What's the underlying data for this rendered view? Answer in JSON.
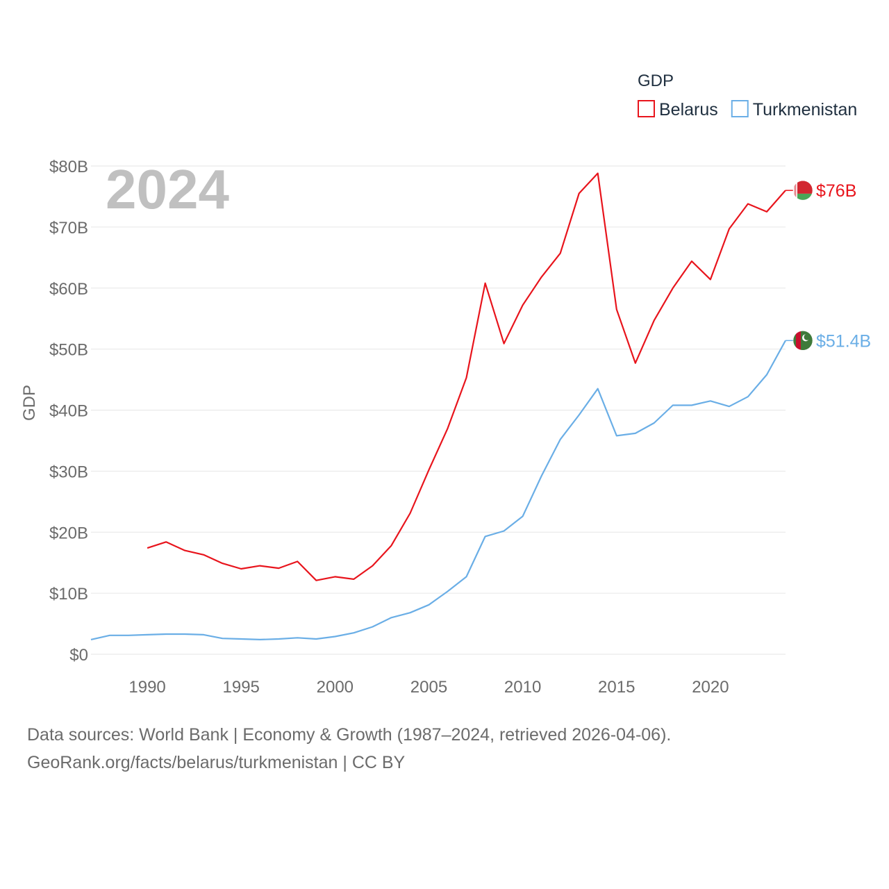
{
  "chart_data": {
    "type": "line",
    "title": "GDP",
    "ylabel": "GDP",
    "xlabel": "",
    "ylim": [
      0,
      80
    ],
    "xlim": [
      1987,
      2024
    ],
    "y_ticks": [
      0,
      10,
      20,
      30,
      40,
      50,
      60,
      70,
      80
    ],
    "y_tick_labels": [
      "$0",
      "$10B",
      "$20B",
      "$30B",
      "$40B",
      "$50B",
      "$60B",
      "$70B",
      "$80B"
    ],
    "x_ticks": [
      1990,
      1995,
      2000,
      2005,
      2010,
      2015,
      2020
    ],
    "x_tick_labels": [
      "1990",
      "1995",
      "2000",
      "2005",
      "2010",
      "2015",
      "2020"
    ],
    "grid": true,
    "legend": {
      "title": "GDP",
      "position": "top-right"
    },
    "current_year": "2024",
    "series": [
      {
        "name": "Belarus",
        "color": "#e8141c",
        "flag": "belarus-flag-icon",
        "end_label": "$76B",
        "x": [
          1990,
          1991,
          1992,
          1993,
          1994,
          1995,
          1996,
          1997,
          1998,
          1999,
          2000,
          2001,
          2002,
          2003,
          2004,
          2005,
          2006,
          2007,
          2008,
          2009,
          2010,
          2011,
          2012,
          2013,
          2014,
          2015,
          2016,
          2017,
          2018,
          2019,
          2020,
          2021,
          2022,
          2023,
          2024
        ],
        "values": [
          17.4,
          18.4,
          17.0,
          16.3,
          14.9,
          14.0,
          14.5,
          14.1,
          15.2,
          12.1,
          12.7,
          12.3,
          14.5,
          17.8,
          23.1,
          30.2,
          37.0,
          45.3,
          60.8,
          50.9,
          57.2,
          61.8,
          65.7,
          75.5,
          78.8,
          56.5,
          47.7,
          54.7,
          60.0,
          64.4,
          61.4,
          69.7,
          73.8,
          72.5,
          76.0
        ]
      },
      {
        "name": "Turkmenistan",
        "color": "#6aaee6",
        "flag": "turkmenistan-flag-icon",
        "end_label": "$51.4B",
        "x": [
          1987,
          1988,
          1989,
          1990,
          1991,
          1992,
          1993,
          1994,
          1995,
          1996,
          1997,
          1998,
          1999,
          2000,
          2001,
          2002,
          2003,
          2004,
          2005,
          2006,
          2007,
          2008,
          2009,
          2010,
          2011,
          2012,
          2013,
          2014,
          2015,
          2016,
          2017,
          2018,
          2019,
          2020,
          2021,
          2022,
          2023,
          2024
        ],
        "values": [
          2.4,
          3.1,
          3.1,
          3.2,
          3.3,
          3.3,
          3.2,
          2.6,
          2.5,
          2.4,
          2.5,
          2.7,
          2.5,
          2.9,
          3.5,
          4.5,
          6.0,
          6.8,
          8.1,
          10.3,
          12.7,
          19.3,
          20.2,
          22.6,
          29.2,
          35.2,
          39.2,
          43.5,
          35.8,
          36.2,
          37.9,
          40.8,
          40.8,
          41.5,
          40.6,
          42.2,
          45.8,
          51.4
        ]
      }
    ]
  },
  "footer": {
    "source_line": "Data sources: World Bank | Economy & Growth (1987–2024, retrieved 2026-04-06).",
    "url_line": "GeoRank.org/facts/belarus/turkmenistan | CC BY"
  }
}
